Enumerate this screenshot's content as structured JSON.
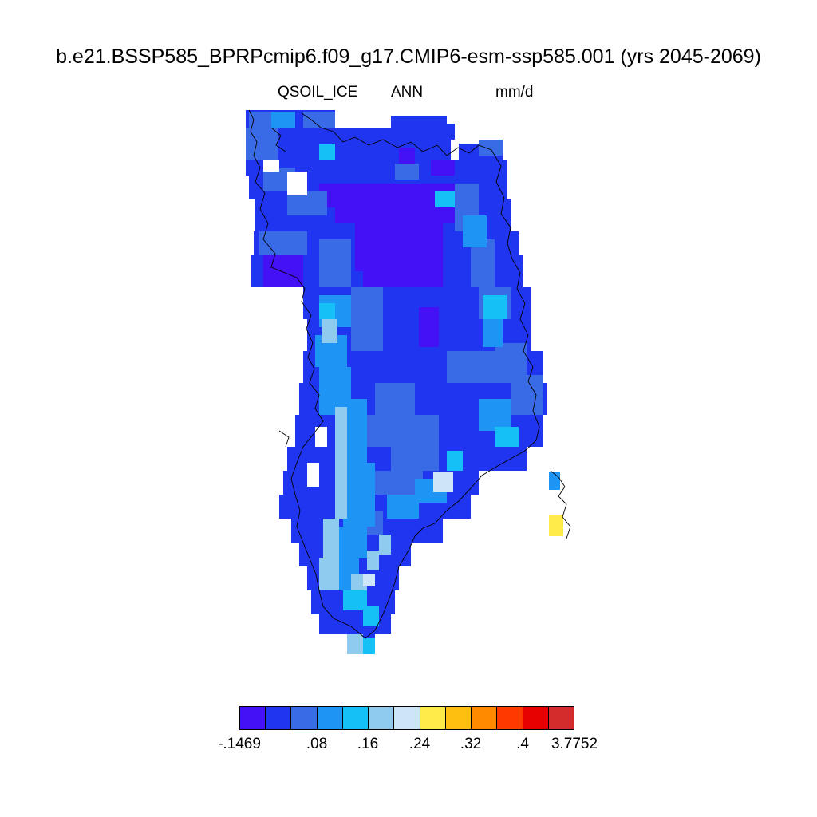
{
  "title": "b.e21.BSSP585_BPRPcmip6.f09_g17.CMIP6-esm-ssp585.001 (yrs 2045-2069)",
  "subtitle": {
    "variable": "QSOIL_ICE",
    "season": "ANN",
    "units": "mm/d"
  },
  "colorbar": {
    "colors": [
      "#4410f5",
      "#2035f0",
      "#3a6be6",
      "#1e94f5",
      "#14c0f5",
      "#8fcbee",
      "#cce6f8",
      "#ffea4a",
      "#ffbf10",
      "#ff8a00",
      "#ff3a00",
      "#e60000",
      "#d42c2c"
    ],
    "labels": [
      "-.1469",
      ".08",
      ".16",
      ".24",
      ".32",
      ".4",
      "3.7752"
    ]
  },
  "map": {
    "region": "Greenland",
    "dominant_value_class": "-.1469 to .08",
    "outline_color": "#000000"
  }
}
